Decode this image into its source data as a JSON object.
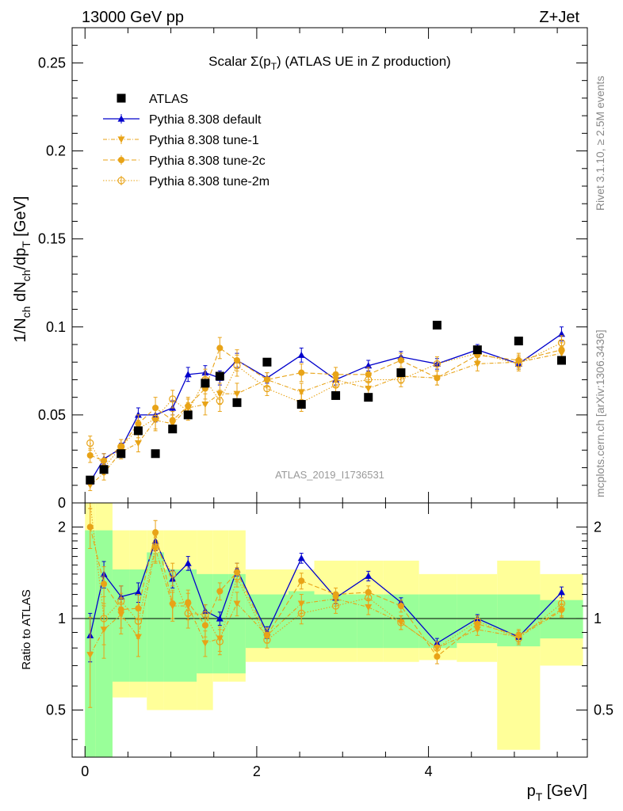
{
  "header": {
    "energy_label": "13000 GeV pp",
    "process_label": "Z+Jet"
  },
  "side_labels": {
    "rivet": "Rivet 3.1.10, ≥ 2.5M events",
    "mcplots": "mcplots.cern.ch [arXiv:1306.3436]"
  },
  "colors": {
    "data": "#000000",
    "default": "#0000cc",
    "tunes": "#e8a317",
    "band_inner": "#99ff99",
    "band_outer": "#ffff99"
  },
  "chart_data": [
    {
      "type": "line",
      "title": "Scalar Σ(p_T) (ATLAS UE in Z production)",
      "watermark": "ATLAS_2019_I1736531",
      "ylabel": "1/N_ch dN_ch/dp_T [GeV]",
      "xlim": [
        -0.15,
        5.85
      ],
      "ylim": [
        0,
        0.27
      ],
      "yticks": [
        {
          "value": 0,
          "label": "0"
        },
        {
          "value": 0.05,
          "label": "0.05"
        },
        {
          "value": 0.1,
          "label": "0.1"
        },
        {
          "value": 0.15,
          "label": "0.15"
        },
        {
          "value": 0.2,
          "label": "0.2"
        },
        {
          "value": 0.25,
          "label": "0.25"
        }
      ],
      "x": [
        0.06,
        0.22,
        0.42,
        0.62,
        0.82,
        1.02,
        1.2,
        1.4,
        1.57,
        1.77,
        2.12,
        2.52,
        2.92,
        3.3,
        3.68,
        4.1,
        4.57,
        5.05,
        5.55
      ],
      "x_bins": [
        [
          0.0,
          0.12
        ],
        [
          0.12,
          0.32
        ],
        [
          0.32,
          0.52
        ],
        [
          0.52,
          0.72
        ],
        [
          0.72,
          0.92
        ],
        [
          0.92,
          1.11
        ],
        [
          1.11,
          1.3
        ],
        [
          1.3,
          1.49
        ],
        [
          1.49,
          1.67
        ],
        [
          1.67,
          1.87
        ],
        [
          1.87,
          2.37
        ],
        [
          2.37,
          2.67
        ],
        [
          2.67,
          3.17
        ],
        [
          3.17,
          3.47
        ],
        [
          3.47,
          3.89
        ],
        [
          3.89,
          4.33
        ],
        [
          4.33,
          4.8
        ],
        [
          4.8,
          5.3
        ],
        [
          5.3,
          5.8
        ]
      ],
      "legend_position": "top-left",
      "series": [
        {
          "name": "ATLAS",
          "style": "data",
          "marker": "square",
          "values": [
            0.013,
            0.019,
            0.028,
            0.041,
            0.028,
            0.042,
            0.05,
            0.068,
            0.072,
            0.057,
            0.08,
            0.056,
            0.061,
            0.06,
            0.074,
            0.101,
            0.087,
            0.092,
            0.081
          ]
        },
        {
          "name": "Pythia 8.308 default",
          "style": "default",
          "marker": "triangle-up",
          "dash": "",
          "values": [
            0.012,
            0.025,
            0.031,
            0.05,
            0.05,
            0.054,
            0.073,
            0.074,
            0.071,
            0.081,
            0.071,
            0.084,
            0.07,
            0.078,
            0.083,
            0.079,
            0.087,
            0.079,
            0.096
          ],
          "errors": [
            0.002,
            0.003,
            0.003,
            0.004,
            0.004,
            0.004,
            0.004,
            0.004,
            0.004,
            0.004,
            0.003,
            0.004,
            0.003,
            0.003,
            0.003,
            0.003,
            0.003,
            0.003,
            0.004
          ]
        },
        {
          "name": "Pythia 8.308 tune-1",
          "style": "tune",
          "marker": "triangle-down",
          "dash": "5,2,1,2",
          "values": [
            0.01,
            0.017,
            0.029,
            0.034,
            0.047,
            0.045,
            0.054,
            0.056,
            0.062,
            0.062,
            0.07,
            0.063,
            0.07,
            0.065,
            0.072,
            0.071,
            0.079,
            0.08,
            0.085
          ],
          "errors": [
            0.003,
            0.004,
            0.004,
            0.005,
            0.006,
            0.005,
            0.005,
            0.006,
            0.006,
            0.006,
            0.004,
            0.005,
            0.004,
            0.004,
            0.004,
            0.004,
            0.004,
            0.004,
            0.004
          ]
        },
        {
          "name": "Pythia 8.308 tune-2c",
          "style": "tune",
          "marker": "circle",
          "dash": "6,3",
          "values": [
            0.027,
            0.024,
            0.032,
            0.045,
            0.054,
            0.047,
            0.055,
            0.065,
            0.088,
            0.081,
            0.07,
            0.074,
            0.073,
            0.073,
            0.081,
            0.071,
            0.084,
            0.081,
            0.087
          ],
          "errors": [
            0.004,
            0.004,
            0.004,
            0.005,
            0.006,
            0.005,
            0.005,
            0.006,
            0.006,
            0.006,
            0.004,
            0.005,
            0.004,
            0.004,
            0.004,
            0.004,
            0.004,
            0.004,
            0.004
          ]
        },
        {
          "name": "Pythia 8.308 tune-2m",
          "style": "tune",
          "marker": "circle-open",
          "dash": "1.5,2",
          "values": [
            0.034,
            0.02,
            0.032,
            0.042,
            0.048,
            0.059,
            0.052,
            0.07,
            0.058,
            0.078,
            0.065,
            0.057,
            0.067,
            0.07,
            0.07,
            0.079,
            0.085,
            0.079,
            0.091
          ],
          "errors": [
            0.004,
            0.004,
            0.004,
            0.005,
            0.006,
            0.005,
            0.005,
            0.006,
            0.006,
            0.006,
            0.004,
            0.005,
            0.004,
            0.004,
            0.004,
            0.004,
            0.004,
            0.004,
            0.004
          ]
        }
      ]
    },
    {
      "type": "line",
      "ylabel": "Ratio to ATLAS",
      "xlabel": "p_T [GeV]",
      "xlim": [
        -0.15,
        5.85
      ],
      "ylim": [
        0.35,
        2.4
      ],
      "log_y": true,
      "reference": 1,
      "yticks": [
        {
          "value": 0.5,
          "label": "0.5"
        },
        {
          "value": 1,
          "label": "1"
        },
        {
          "value": 2,
          "label": "2"
        }
      ],
      "xticks": [
        {
          "value": 0,
          "label": "0"
        },
        {
          "value": 2,
          "label": "2"
        },
        {
          "value": 4,
          "label": "4"
        }
      ],
      "band_inner": [
        [
          0.35,
          1.95
        ],
        [
          0.35,
          1.95
        ],
        [
          0.62,
          1.45
        ],
        [
          0.62,
          1.45
        ],
        [
          0.62,
          1.65
        ],
        [
          0.62,
          1.45
        ],
        [
          0.62,
          1.45
        ],
        [
          0.66,
          1.4
        ],
        [
          0.66,
          1.4
        ],
        [
          0.66,
          1.4
        ],
        [
          0.8,
          1.2
        ],
        [
          0.8,
          1.23
        ],
        [
          0.8,
          1.2
        ],
        [
          0.8,
          1.2
        ],
        [
          0.8,
          1.2
        ],
        [
          0.8,
          1.2
        ],
        [
          0.83,
          1.2
        ],
        [
          0.81,
          1.2
        ],
        [
          0.86,
          1.15
        ]
      ],
      "band_outer": [
        [
          0.35,
          2.4
        ],
        [
          0.35,
          2.4
        ],
        [
          0.55,
          1.95
        ],
        [
          0.55,
          1.95
        ],
        [
          0.5,
          1.95
        ],
        [
          0.5,
          1.95
        ],
        [
          0.5,
          1.95
        ],
        [
          0.5,
          1.95
        ],
        [
          0.62,
          1.95
        ],
        [
          0.62,
          1.95
        ],
        [
          0.72,
          1.45
        ],
        [
          0.72,
          1.45
        ],
        [
          0.72,
          1.55
        ],
        [
          0.72,
          1.55
        ],
        [
          0.72,
          1.55
        ],
        [
          0.73,
          1.4
        ],
        [
          0.72,
          1.4
        ],
        [
          0.37,
          1.55
        ],
        [
          0.7,
          1.4
        ]
      ],
      "series": [
        {
          "name": "Pythia 8.308 default",
          "style": "default",
          "marker": "triangle-up",
          "dash": "",
          "values": [
            0.88,
            1.4,
            1.18,
            1.22,
            1.8,
            1.35,
            1.52,
            1.06,
            1.0,
            1.45,
            0.9,
            1.58,
            1.17,
            1.38,
            1.13,
            0.83,
            1.0,
            0.87,
            1.22
          ],
          "errors": [
            0.16,
            0.14,
            0.1,
            0.09,
            0.13,
            0.09,
            0.08,
            0.05,
            0.05,
            0.07,
            0.04,
            0.06,
            0.05,
            0.05,
            0.04,
            0.03,
            0.03,
            0.03,
            0.05
          ]
        },
        {
          "name": "Pythia 8.308 tune-1",
          "style": "tune",
          "marker": "triangle-down",
          "dash": "5,2,1,2",
          "values": [
            0.76,
            0.92,
            1.03,
            0.87,
            1.7,
            1.1,
            1.1,
            0.83,
            0.86,
            1.12,
            0.88,
            1.12,
            1.16,
            1.09,
            0.97,
            0.8,
            0.92,
            0.87,
            1.06
          ],
          "errors": [
            0.25,
            0.18,
            0.14,
            0.12,
            0.18,
            0.12,
            0.11,
            0.08,
            0.08,
            0.1,
            0.05,
            0.08,
            0.06,
            0.06,
            0.05,
            0.04,
            0.04,
            0.04,
            0.05
          ]
        },
        {
          "name": "Pythia 8.308 tune-2c",
          "style": "tune",
          "marker": "circle",
          "dash": "6,3",
          "values": [
            2.0,
            1.3,
            1.07,
            1.08,
            1.92,
            1.12,
            1.13,
            0.95,
            1.23,
            1.42,
            0.88,
            1.33,
            1.2,
            1.22,
            1.1,
            0.75,
            0.96,
            0.88,
            1.07
          ],
          "errors": [
            0.3,
            0.18,
            0.14,
            0.12,
            0.18,
            0.12,
            0.11,
            0.08,
            0.08,
            0.1,
            0.05,
            0.08,
            0.06,
            0.06,
            0.05,
            0.04,
            0.04,
            0.04,
            0.05
          ]
        },
        {
          "name": "Pythia 8.308 tune-2m",
          "style": "tune",
          "marker": "circle-open",
          "dash": "1.5,2",
          "values": [
            2.6,
            1.0,
            1.14,
            0.98,
            1.72,
            1.4,
            1.04,
            1.03,
            0.84,
            1.37,
            0.85,
            1.04,
            1.1,
            1.17,
            0.97,
            0.8,
            0.98,
            0.86,
            1.12
          ],
          "errors": [
            0.3,
            0.18,
            0.14,
            0.12,
            0.18,
            0.12,
            0.11,
            0.08,
            0.08,
            0.1,
            0.05,
            0.08,
            0.06,
            0.06,
            0.05,
            0.04,
            0.04,
            0.04,
            0.05
          ]
        }
      ]
    }
  ]
}
